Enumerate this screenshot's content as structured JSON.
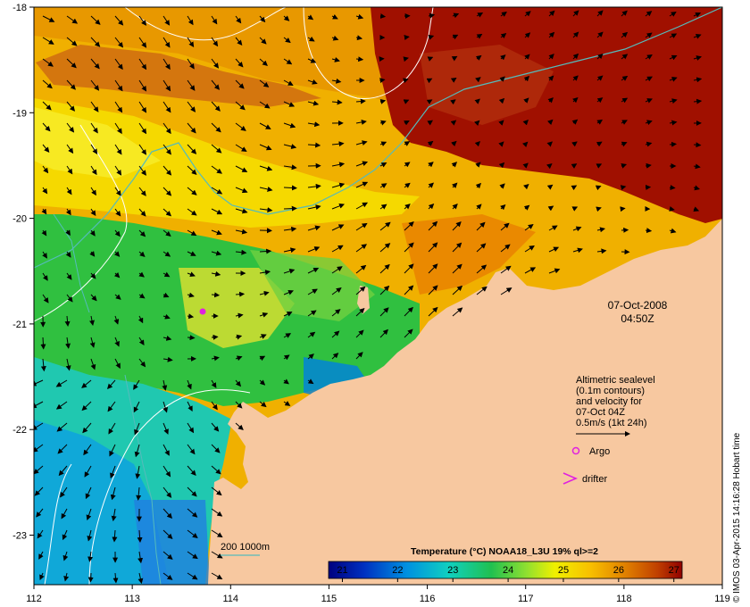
{
  "map": {
    "x_ticks": [
      "112",
      "113",
      "114",
      "115",
      "116",
      "117",
      "118",
      "119"
    ],
    "y_ticks": [
      "-18",
      "-19",
      "-20",
      "-21",
      "-22",
      "-23"
    ],
    "date_line1": "07-Oct-2008",
    "date_line2": "04:50Z",
    "legend": {
      "lines": [
        "Altimetric sealevel",
        "(0.1m contours)",
        "and velocity for",
        "07-Oct 04Z",
        "0.5m/s (1kt 24h)"
      ],
      "argo_label": "Argo",
      "drifter_label": "drifter"
    },
    "bathy_label": "200  1000m",
    "credit": "© IMOS 03-Apr-2015 14:16:28 Hobart time"
  },
  "colorbar": {
    "title": "Temperature (°C) NOAA18_L3U 19% ql>=2",
    "ticks": [
      "21",
      "22",
      "23",
      "24",
      "25",
      "26",
      "27"
    ],
    "range": [
      20.75,
      27.15
    ]
  },
  "colors": {
    "land": "#f7c8a0",
    "argo_marker": "#e020e0",
    "drifter_marker": "#e020e0",
    "bathy_contour": "#55bbbb",
    "sealevel_contour": "#ffffff"
  }
}
